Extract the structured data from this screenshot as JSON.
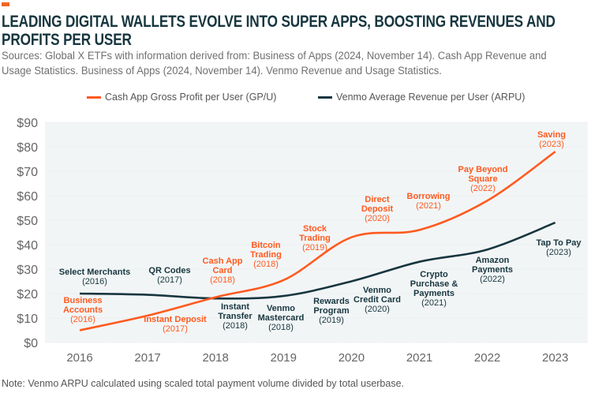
{
  "title": "LEADING DIGITAL WALLETS EVOLVE INTO SUPER APPS, BOOSTING REVENUES AND PROFITS PER USER",
  "sources": "Sources: Global X ETFs with information derived from: Business of Apps (2024, November 14). Cash App Revenue and Usage Statistics. Business of Apps (2024, November 14). Venmo Revenue and Usage Statistics.",
  "note": "Note: Venmo ARPU calculated using scaled total payment volume divided by total userbase.",
  "colors": {
    "cash_app": "#ff5a1f",
    "venmo": "#17363f",
    "plot_bg": "#f2f5f6",
    "accent": "#f26522"
  },
  "chart_data": {
    "type": "line",
    "x": [
      "2016",
      "2017",
      "2018",
      "2019",
      "2020",
      "2021",
      "2022",
      "2023"
    ],
    "series": [
      {
        "name": "Cash App Gross Profit per User (GP/U)",
        "color": "#ff5a1f",
        "values": [
          5,
          11,
          18.5,
          25.5,
          43,
          46,
          58,
          78
        ]
      },
      {
        "name": "Venmo Average Revenue per User (ARPU)",
        "color": "#17363f",
        "values": [
          20,
          19.5,
          18,
          19,
          25,
          33,
          38,
          49
        ]
      }
    ],
    "ylim": [
      0,
      90
    ],
    "yticks": [
      "$0",
      "$10",
      "$20",
      "$30",
      "$40",
      "$50",
      "$60",
      "$70",
      "$80",
      "$90"
    ],
    "grid": true,
    "legend": "top-center",
    "annotations": [
      {
        "series": "cash",
        "lines": [
          "Business",
          "Accounts"
        ],
        "year": "(2016)"
      },
      {
        "series": "cash",
        "lines": [
          "Instant Deposit"
        ],
        "year": "(2017)"
      },
      {
        "series": "cash",
        "lines": [
          "Cash App",
          "Card"
        ],
        "year": "(2018)"
      },
      {
        "series": "cash",
        "lines": [
          "Bitcoin",
          "Trading"
        ],
        "year": "(2018)"
      },
      {
        "series": "cash",
        "lines": [
          "Stock",
          "Trading"
        ],
        "year": "(2019)"
      },
      {
        "series": "cash",
        "lines": [
          "Direct",
          "Deposit"
        ],
        "year": "(2020)"
      },
      {
        "series": "cash",
        "lines": [
          "Borrowing"
        ],
        "year": "(2021)"
      },
      {
        "series": "cash",
        "lines": [
          "Pay Beyond",
          "Square"
        ],
        "year": "(2022)"
      },
      {
        "series": "cash",
        "lines": [
          "Saving"
        ],
        "year": "(2023)"
      },
      {
        "series": "venmo",
        "lines": [
          "Select Merchants"
        ],
        "year": "(2016)"
      },
      {
        "series": "venmo",
        "lines": [
          "QR Codes"
        ],
        "year": "(2017)"
      },
      {
        "series": "venmo",
        "lines": [
          "Instant",
          "Transfer"
        ],
        "year": "(2018)"
      },
      {
        "series": "venmo",
        "lines": [
          "Venmo",
          "Mastercard"
        ],
        "year": "(2018)"
      },
      {
        "series": "venmo",
        "lines": [
          "Rewards",
          "Program"
        ],
        "year": "(2019)"
      },
      {
        "series": "venmo",
        "lines": [
          "Venmo",
          "Credit Card"
        ],
        "year": "(2020)"
      },
      {
        "series": "venmo",
        "lines": [
          "Crypto",
          "Purchase &",
          "Payments"
        ],
        "year": "(2021)"
      },
      {
        "series": "venmo",
        "lines": [
          "Amazon",
          "Payments"
        ],
        "year": "(2022)"
      },
      {
        "series": "venmo",
        "lines": [
          "Tap To Pay"
        ],
        "year": "(2023)"
      }
    ]
  }
}
